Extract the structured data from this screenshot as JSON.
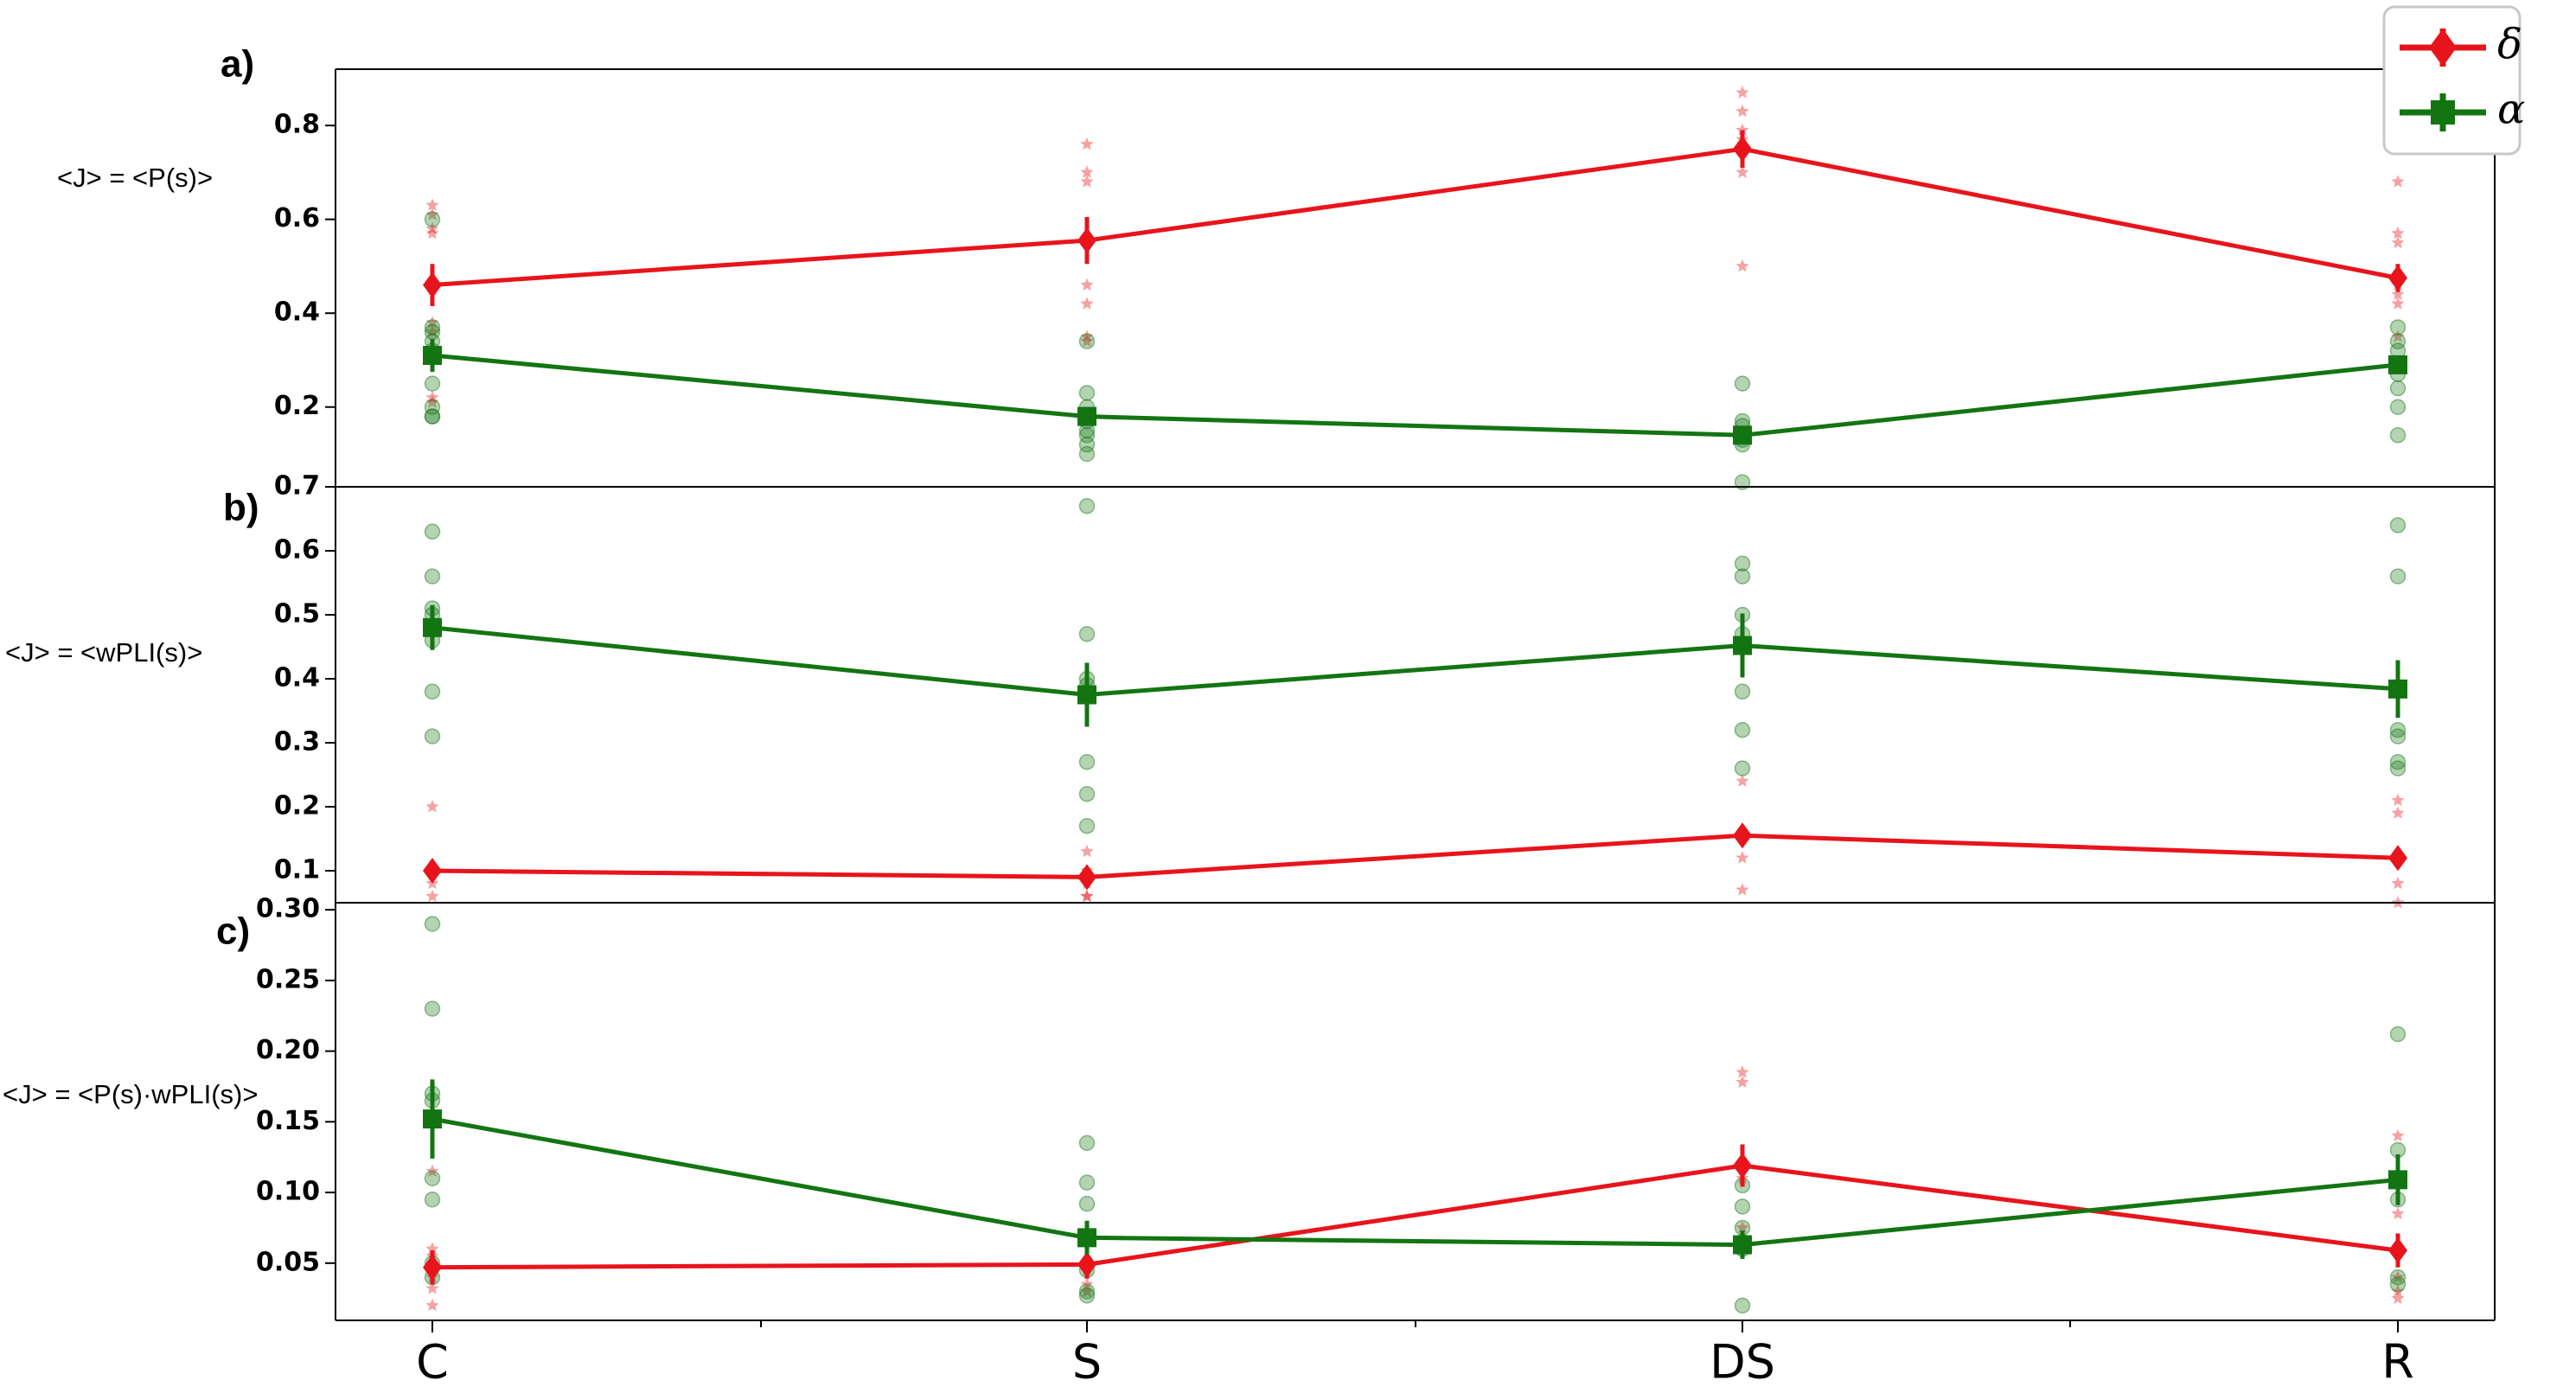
{
  "chart_data": [
    {
      "type": "line",
      "panel": "a)",
      "ylabel": "<J> = <P(s)>",
      "categories": [
        "C",
        "S",
        "DS",
        "R"
      ],
      "ylim": [
        0.03,
        0.92
      ],
      "yticks": [
        0.2,
        0.4,
        0.6,
        0.8
      ],
      "ytick_labels": [
        "0.2",
        "0.4",
        "0.6",
        "0.8"
      ],
      "series": [
        {
          "name": "δ",
          "color": "#e8141c",
          "marker": "diamond",
          "values": [
            0.46,
            0.555,
            0.75,
            0.475
          ],
          "errors": [
            0.045,
            0.05,
            0.04,
            0.03
          ],
          "scatter": [
            [
              0.63,
              0.61,
              0.58,
              0.57,
              0.45,
              0.38,
              0.36,
              0.22,
              0.21
            ],
            [
              0.76,
              0.7,
              0.68,
              0.56,
              0.46,
              0.42,
              0.35,
              0.34
            ],
            [
              0.87,
              0.83,
              0.79,
              0.77,
              0.7,
              0.5
            ],
            [
              0.68,
              0.57,
              0.55,
              0.46,
              0.44,
              0.42,
              0.35
            ]
          ]
        },
        {
          "name": "α",
          "color": "#137512",
          "marker": "square",
          "values": [
            0.31,
            0.18,
            0.14,
            0.29
          ],
          "errors": [
            0.035,
            0.02,
            0.015,
            0.02
          ],
          "scatter": [
            [
              0.6,
              0.37,
              0.36,
              0.34,
              0.32,
              0.25,
              0.2,
              0.18,
              0.18
            ],
            [
              0.34,
              0.23,
              0.2,
              0.17,
              0.15,
              0.14,
              0.12,
              0.1
            ],
            [
              0.25,
              0.17,
              0.16,
              0.14,
              0.13,
              0.12,
              0.04
            ],
            [
              0.37,
              0.34,
              0.32,
              0.27,
              0.24,
              0.2,
              0.14
            ]
          ]
        }
      ]
    },
    {
      "type": "line",
      "panel": "b)",
      "ylabel": "<J> = <wPLI(s)>",
      "categories": [
        "C",
        "S",
        "DS",
        "R"
      ],
      "ylim": [
        0.05,
        0.7
      ],
      "yticks": [
        0.1,
        0.2,
        0.3,
        0.4,
        0.5,
        0.6,
        0.7
      ],
      "ytick_labels": [
        "0.1",
        "0.2",
        "0.3",
        "0.4",
        "0.5",
        "0.6",
        "0.7"
      ],
      "series": [
        {
          "name": "δ",
          "color": "#e8141c",
          "marker": "diamond",
          "values": [
            0.1,
            0.09,
            0.155,
            0.12
          ],
          "errors": [
            0.008,
            0.008,
            0.012,
            0.01
          ],
          "scatter": [
            [
              0.2,
              0.1,
              0.08,
              0.06
            ],
            [
              0.13,
              0.1,
              0.08,
              0.06,
              0.06
            ],
            [
              0.24,
              0.15,
              0.12,
              0.07
            ],
            [
              0.21,
              0.19,
              0.12,
              0.08,
              0.05
            ]
          ]
        },
        {
          "name": "α",
          "color": "#137512",
          "marker": "square",
          "values": [
            0.48,
            0.375,
            0.452,
            0.384
          ],
          "errors": [
            0.035,
            0.05,
            0.05,
            0.045
          ],
          "scatter": [
            [
              0.63,
              0.56,
              0.51,
              0.5,
              0.46,
              0.38,
              0.31
            ],
            [
              0.67,
              0.47,
              0.4,
              0.39,
              0.27,
              0.22,
              0.17
            ],
            [
              0.58,
              0.56,
              0.5,
              0.47,
              0.38,
              0.32,
              0.26
            ],
            [
              0.64,
              0.56,
              0.32,
              0.31,
              0.27,
              0.26
            ]
          ]
        }
      ]
    },
    {
      "type": "line",
      "panel": "c)",
      "ylabel": "<J> = <P(s)·wPLI(s)>",
      "categories": [
        "C",
        "S",
        "DS",
        "R"
      ],
      "ylim": [
        0.0095,
        0.305
      ],
      "yticks": [
        0.05,
        0.1,
        0.15,
        0.2,
        0.25,
        0.3
      ],
      "ytick_labels": [
        "0.05",
        "0.10",
        "0.15",
        "0.20",
        "0.25",
        "0.30"
      ],
      "series": [
        {
          "name": "δ",
          "color": "#e8141c",
          "marker": "diamond",
          "values": [
            0.047,
            0.049,
            0.119,
            0.059
          ],
          "errors": [
            0.012,
            0.01,
            0.015,
            0.012
          ],
          "scatter": [
            [
              0.115,
              0.06,
              0.055,
              0.04,
              0.032,
              0.02
            ],
            [
              0.05,
              0.045,
              0.035,
              0.03
            ],
            [
              0.185,
              0.178,
              0.11,
              0.075,
              0.06
            ],
            [
              0.14,
              0.085,
              0.04,
              0.03,
              0.025
            ]
          ]
        },
        {
          "name": "α",
          "color": "#137512",
          "marker": "square",
          "values": [
            0.152,
            0.068,
            0.063,
            0.109
          ],
          "errors": [
            0.028,
            0.012,
            0.01,
            0.018
          ],
          "scatter": [
            [
              0.29,
              0.23,
              0.17,
              0.165,
              0.11,
              0.095,
              0.05,
              0.04
            ],
            [
              0.135,
              0.107,
              0.092,
              0.045,
              0.03,
              0.027
            ],
            [
              0.105,
              0.09,
              0.075,
              0.065,
              0.06,
              0.02
            ],
            [
              0.212,
              0.13,
              0.095,
              0.04,
              0.035
            ]
          ]
        }
      ]
    }
  ],
  "legend": {
    "placement": "top-right",
    "items": [
      {
        "label": "δ",
        "color": "#e8141c",
        "marker": "diamond"
      },
      {
        "label": "α",
        "color": "#137512",
        "marker": "square"
      }
    ]
  }
}
